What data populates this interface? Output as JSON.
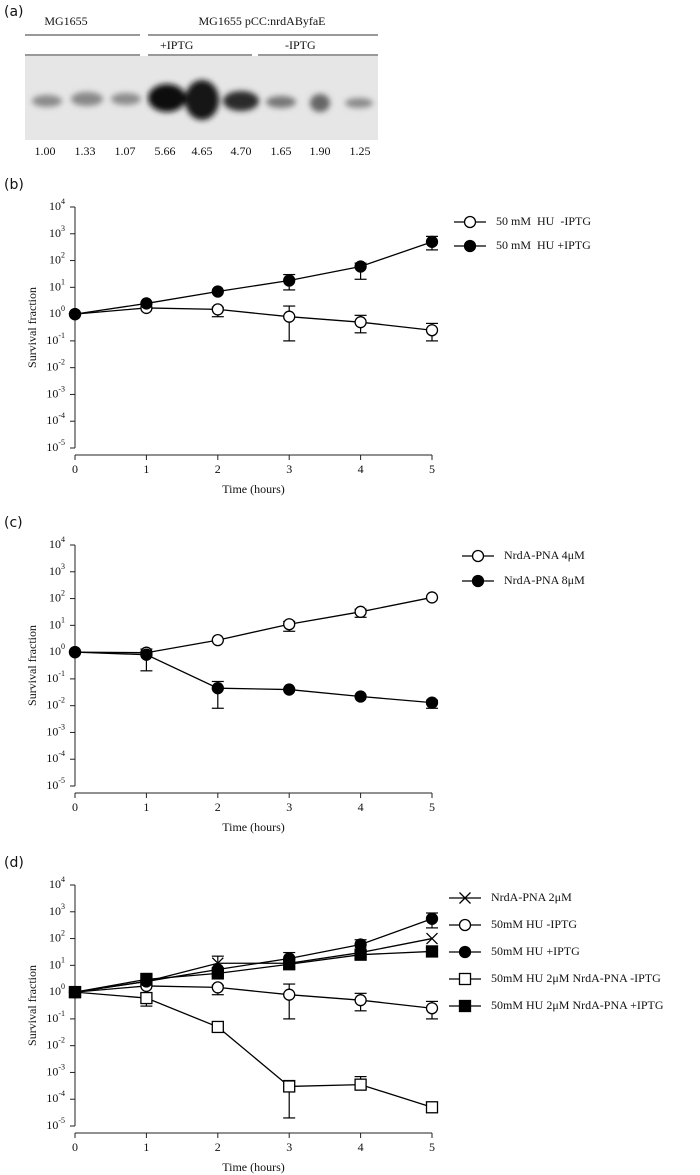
{
  "blot": {
    "panel_label": "(a)",
    "strain_labels": [
      "MG1655",
      "MG1655 pCC:nrdAByfaE"
    ],
    "condition_labels": [
      "+IPTG",
      "-IPTG"
    ],
    "lane_values": [
      "1.00",
      "1.33",
      "1.07",
      "5.66",
      "4.65",
      "4.70",
      "1.65",
      "1.90",
      "1.25"
    ]
  },
  "chart_data": [
    {
      "type": "line",
      "panel_label": "(b)",
      "xlabel": "Time (hours)",
      "ylabel": "Survival fraction",
      "yscale": "log",
      "x": [
        0,
        1,
        2,
        3,
        4,
        5
      ],
      "xlim": [
        0,
        5
      ],
      "xticks": [
        0,
        1,
        2,
        3,
        4,
        5
      ],
      "ylim": [
        1e-05,
        10000
      ],
      "yticks": [
        {
          "value": 1e-05,
          "label": {
            "base": "10",
            "exp": "-5"
          }
        },
        {
          "value": 0.0001,
          "label": {
            "base": "10",
            "exp": "-4"
          }
        },
        {
          "value": 0.001,
          "label": {
            "base": "10",
            "exp": "-3"
          }
        },
        {
          "value": 0.01,
          "label": {
            "base": "10",
            "exp": "-2"
          }
        },
        {
          "value": 0.1,
          "label": {
            "base": "10",
            "exp": "-1"
          }
        },
        {
          "value": 1,
          "label": {
            "base": "10",
            "exp": "0"
          }
        },
        {
          "value": 10,
          "label": {
            "base": "10",
            "exp": "1"
          }
        },
        {
          "value": 100,
          "label": {
            "base": "10",
            "exp": "2"
          }
        },
        {
          "value": 1000,
          "label": {
            "base": "10",
            "exp": "3"
          }
        },
        {
          "value": 10000,
          "label": {
            "base": "10",
            "exp": "4"
          }
        }
      ],
      "series": [
        {
          "name": "50 mM  HU  -IPTG",
          "marker": "open-circle",
          "color": "#000000",
          "values": [
            1,
            1.7,
            1.5,
            0.8,
            0.5,
            0.25
          ],
          "err_low": [
            null,
            null,
            0.8,
            0.1,
            0.2,
            0.1
          ],
          "err_high": [
            null,
            null,
            1.8,
            2,
            0.9,
            0.45
          ]
        },
        {
          "name": "50 mM  HU +IPTG",
          "marker": "filled-circle",
          "color": "#000000",
          "values": [
            1,
            2.5,
            7,
            18,
            60,
            500
          ],
          "err_low": [
            null,
            null,
            null,
            8,
            20,
            250
          ],
          "err_high": [
            null,
            null,
            null,
            30,
            80,
            800
          ]
        }
      ]
    },
    {
      "type": "line",
      "panel_label": "(c)",
      "xlabel": "Time (hours)",
      "ylabel": "Survival fraction",
      "yscale": "log",
      "x": [
        0,
        1,
        2,
        3,
        4,
        5
      ],
      "xlim": [
        0,
        5
      ],
      "xticks": [
        0,
        1,
        2,
        3,
        4,
        5
      ],
      "ylim": [
        1e-05,
        10000
      ],
      "yticks": [
        {
          "value": 1e-05,
          "label": {
            "base": "10",
            "exp": "-5"
          }
        },
        {
          "value": 0.0001,
          "label": {
            "base": "10",
            "exp": "-4"
          }
        },
        {
          "value": 0.001,
          "label": {
            "base": "10",
            "exp": "-3"
          }
        },
        {
          "value": 0.01,
          "label": {
            "base": "10",
            "exp": "-2"
          }
        },
        {
          "value": 0.1,
          "label": {
            "base": "10",
            "exp": "-1"
          }
        },
        {
          "value": 1,
          "label": {
            "base": "10",
            "exp": "0"
          }
        },
        {
          "value": 10,
          "label": {
            "base": "10",
            "exp": "1"
          }
        },
        {
          "value": 100,
          "label": {
            "base": "10",
            "exp": "2"
          }
        },
        {
          "value": 1000,
          "label": {
            "base": "10",
            "exp": "3"
          }
        },
        {
          "value": 10000,
          "label": {
            "base": "10",
            "exp": "4"
          }
        }
      ],
      "series": [
        {
          "name": "NrdA-PNA 4μM",
          "marker": "open-circle",
          "color": "#000000",
          "values": [
            1,
            0.95,
            2.8,
            11,
            32,
            110
          ],
          "err_low": [
            null,
            null,
            null,
            6,
            20,
            null
          ],
          "err_high": [
            null,
            null,
            null,
            14,
            40,
            null
          ]
        },
        {
          "name": "NrdA-PNA 8μM",
          "marker": "filled-circle",
          "color": "#000000",
          "values": [
            1,
            0.8,
            0.045,
            0.04,
            0.022,
            0.013
          ],
          "err_low": [
            null,
            0.2,
            0.008,
            null,
            null,
            0.008
          ],
          "err_high": [
            null,
            1.3,
            0.08,
            null,
            null,
            0.016
          ]
        }
      ]
    },
    {
      "type": "line",
      "panel_label": "(d)",
      "xlabel": "Time (hours)",
      "ylabel": "Survival fraction",
      "yscale": "log",
      "x": [
        0,
        1,
        2,
        3,
        4,
        5
      ],
      "xlim": [
        0,
        5
      ],
      "xticks": [
        0,
        1,
        2,
        3,
        4,
        5
      ],
      "ylim": [
        1e-05,
        10000
      ],
      "yticks": [
        {
          "value": 1e-05,
          "label": {
            "base": "10",
            "exp": "-5"
          }
        },
        {
          "value": 0.0001,
          "label": {
            "base": "10",
            "exp": "-4"
          }
        },
        {
          "value": 0.001,
          "label": {
            "base": "10",
            "exp": "-3"
          }
        },
        {
          "value": 0.01,
          "label": {
            "base": "10",
            "exp": "-2"
          }
        },
        {
          "value": 0.1,
          "label": {
            "base": "10",
            "exp": "-1"
          }
        },
        {
          "value": 1,
          "label": {
            "base": "10",
            "exp": "0"
          }
        },
        {
          "value": 10,
          "label": {
            "base": "10",
            "exp": "1"
          }
        },
        {
          "value": 100,
          "label": {
            "base": "10",
            "exp": "2"
          }
        },
        {
          "value": 1000,
          "label": {
            "base": "10",
            "exp": "3"
          }
        },
        {
          "value": 10000,
          "label": {
            "base": "10",
            "exp": "4"
          }
        }
      ],
      "series": [
        {
          "name": "NrdA-PNA 2μM",
          "marker": "x",
          "color": "#000000",
          "values": [
            1,
            2.5,
            12,
            12,
            30,
            100
          ],
          "err_low": [
            null,
            null,
            4,
            null,
            null,
            null
          ],
          "err_high": [
            null,
            null,
            22,
            null,
            null,
            null
          ]
        },
        {
          "name": "50mM HU -IPTG",
          "marker": "open-circle",
          "color": "#000000",
          "values": [
            1,
            1.7,
            1.5,
            0.8,
            0.5,
            0.25
          ],
          "err_low": [
            null,
            null,
            0.8,
            0.1,
            0.2,
            0.1
          ],
          "err_high": [
            null,
            null,
            1.8,
            2,
            0.9,
            0.45
          ]
        },
        {
          "name": "50mM HU +IPTG",
          "marker": "filled-circle",
          "color": "#000000",
          "values": [
            1,
            2.5,
            7,
            18,
            60,
            550
          ],
          "err_low": [
            null,
            null,
            null,
            8,
            20,
            250
          ],
          "err_high": [
            null,
            null,
            null,
            30,
            90,
            900
          ]
        },
        {
          "name": "50mM HU 2μM NrdA-PNA -IPTG",
          "marker": "open-square",
          "color": "#000000",
          "values": [
            1,
            0.6,
            0.05,
            0.0003,
            0.00035,
            5e-05
          ],
          "err_low": [
            null,
            0.3,
            0.035,
            2e-05,
            0.00025,
            null
          ],
          "err_high": [
            null,
            0.9,
            0.06,
            0.0005,
            0.0007,
            null
          ]
        },
        {
          "name": "50mM HU 2μM NrdA-PNA +IPTG",
          "marker": "filled-square",
          "color": "#000000",
          "values": [
            1,
            3,
            5,
            11,
            25,
            33
          ],
          "err_low": [
            null,
            null,
            null,
            null,
            null,
            null
          ],
          "err_high": [
            null,
            5,
            null,
            null,
            null,
            null
          ]
        }
      ]
    }
  ]
}
